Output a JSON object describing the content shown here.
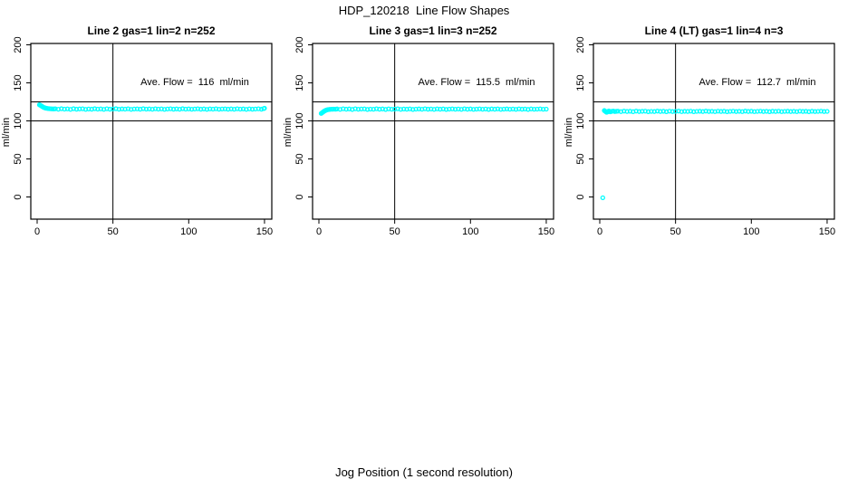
{
  "title": "HDP_120218  Line Flow Shapes",
  "xlabel": "Jog Position (1 second resolution)",
  "ylabel": "ml/min",
  "axis_color": "#000000",
  "chart_data": [
    {
      "type": "scatter",
      "title": "Line 2 gas=1 lin=2 n=252",
      "annotation": "Ave. Flow =  116  ml/min",
      "ave_flow_ml_min": 116,
      "n": 252,
      "xlim": [
        0,
        150
      ],
      "ylim": [
        0,
        200
      ],
      "xticks": [
        0,
        50,
        100,
        150
      ],
      "yticks": [
        0,
        50,
        100,
        150,
        200
      ],
      "ref_hlines": [
        100,
        125
      ],
      "ref_vlines": [
        50
      ],
      "point_color": "#00ffff",
      "points": [
        [
          1.5,
          121.2
        ],
        [
          2,
          120.7
        ],
        [
          2.5,
          120.1
        ],
        [
          3,
          119.4
        ],
        [
          3.5,
          118.7
        ],
        [
          4,
          118.1
        ],
        [
          4.5,
          117.6
        ],
        [
          5,
          117.2
        ],
        [
          5.5,
          116.9
        ],
        [
          6,
          116.6
        ],
        [
          7,
          116.3
        ],
        [
          8,
          116.1
        ],
        [
          9,
          115.9
        ],
        [
          10,
          115.8
        ],
        [
          11,
          115.7
        ],
        [
          12,
          115.9
        ],
        [
          14,
          115.3
        ],
        [
          16,
          116.0
        ],
        [
          18,
          115.5
        ],
        [
          20,
          115.8
        ],
        [
          22,
          115.2
        ],
        [
          24,
          116.0
        ],
        [
          26,
          115.4
        ],
        [
          28,
          115.7
        ],
        [
          30,
          115.9
        ],
        [
          32,
          115.2
        ],
        [
          34,
          115.6
        ],
        [
          36,
          115.4
        ],
        [
          38,
          116.0
        ],
        [
          40,
          115.5
        ],
        [
          42,
          115.8
        ],
        [
          44,
          115.2
        ],
        [
          46,
          115.9
        ],
        [
          48,
          115.4
        ],
        [
          50,
          115.6
        ],
        [
          52,
          116.0
        ],
        [
          54,
          115.3
        ],
        [
          56,
          115.7
        ],
        [
          58,
          115.5
        ],
        [
          60,
          115.9
        ],
        [
          62,
          115.2
        ],
        [
          64,
          115.6
        ],
        [
          66,
          115.8
        ],
        [
          68,
          115.4
        ],
        [
          70,
          116.0
        ],
        [
          72,
          115.5
        ],
        [
          74,
          115.7
        ],
        [
          76,
          115.3
        ],
        [
          78,
          115.9
        ],
        [
          80,
          115.5
        ],
        [
          82,
          115.8
        ],
        [
          84,
          115.2
        ],
        [
          86,
          115.6
        ],
        [
          88,
          115.9
        ],
        [
          90,
          115.4
        ],
        [
          92,
          115.7
        ],
        [
          94,
          115.3
        ],
        [
          96,
          116.0
        ],
        [
          98,
          115.5
        ],
        [
          100,
          115.8
        ],
        [
          102,
          115.3
        ],
        [
          104,
          115.6
        ],
        [
          106,
          115.9
        ],
        [
          108,
          115.4
        ],
        [
          110,
          115.7
        ],
        [
          112,
          115.2
        ],
        [
          114,
          115.8
        ],
        [
          116,
          115.5
        ],
        [
          118,
          115.9
        ],
        [
          120,
          115.3
        ],
        [
          122,
          115.6
        ],
        [
          124,
          115.8
        ],
        [
          126,
          115.4
        ],
        [
          128,
          115.7
        ],
        [
          130,
          115.3
        ],
        [
          132,
          115.9
        ],
        [
          134,
          115.5
        ],
        [
          136,
          115.7
        ],
        [
          138,
          115.2
        ],
        [
          140,
          115.8
        ],
        [
          142,
          115.4
        ],
        [
          144,
          115.6
        ],
        [
          146,
          115.9
        ],
        [
          148,
          115.4
        ],
        [
          149.5,
          116.2
        ],
        [
          150,
          116.6
        ]
      ]
    },
    {
      "type": "scatter",
      "title": "Line 3 gas=1 lin=3 n=252",
      "annotation": "Ave. Flow =  115.5  ml/min",
      "ave_flow_ml_min": 115.5,
      "n": 252,
      "xlim": [
        0,
        150
      ],
      "ylim": [
        0,
        200
      ],
      "xticks": [
        0,
        50,
        100,
        150
      ],
      "yticks": [
        0,
        50,
        100,
        150,
        200
      ],
      "ref_hlines": [
        100,
        125
      ],
      "ref_vlines": [
        50
      ],
      "point_color": "#00ffff",
      "points": [
        [
          1.5,
          109.8
        ],
        [
          2,
          110.5
        ],
        [
          2.5,
          111.3
        ],
        [
          3,
          112.1
        ],
        [
          3.5,
          112.8
        ],
        [
          4,
          113.4
        ],
        [
          4.5,
          113.9
        ],
        [
          5,
          114.3
        ],
        [
          5.5,
          114.6
        ],
        [
          6,
          114.9
        ],
        [
          7,
          115.1
        ],
        [
          8,
          115.3
        ],
        [
          9,
          115.4
        ],
        [
          10,
          115.5
        ],
        [
          11,
          115.4
        ],
        [
          12,
          115.7
        ],
        [
          14,
          115.2
        ],
        [
          16,
          115.9
        ],
        [
          18,
          115.4
        ],
        [
          20,
          115.7
        ],
        [
          22,
          115.1
        ],
        [
          24,
          115.9
        ],
        [
          26,
          115.3
        ],
        [
          28,
          115.6
        ],
        [
          30,
          115.8
        ],
        [
          32,
          115.1
        ],
        [
          34,
          115.5
        ],
        [
          36,
          115.3
        ],
        [
          38,
          115.9
        ],
        [
          40,
          115.4
        ],
        [
          42,
          115.7
        ],
        [
          44,
          115.1
        ],
        [
          46,
          115.8
        ],
        [
          48,
          115.3
        ],
        [
          50,
          115.5
        ],
        [
          52,
          115.9
        ],
        [
          54,
          115.2
        ],
        [
          56,
          115.6
        ],
        [
          58,
          115.4
        ],
        [
          60,
          115.8
        ],
        [
          62,
          115.1
        ],
        [
          64,
          115.5
        ],
        [
          66,
          115.7
        ],
        [
          68,
          115.3
        ],
        [
          70,
          115.9
        ],
        [
          72,
          115.4
        ],
        [
          74,
          115.6
        ],
        [
          76,
          115.2
        ],
        [
          78,
          115.8
        ],
        [
          80,
          115.4
        ],
        [
          82,
          115.7
        ],
        [
          84,
          115.1
        ],
        [
          86,
          115.5
        ],
        [
          88,
          115.8
        ],
        [
          90,
          115.3
        ],
        [
          92,
          115.6
        ],
        [
          94,
          115.2
        ],
        [
          96,
          115.9
        ],
        [
          98,
          115.4
        ],
        [
          100,
          115.7
        ],
        [
          102,
          115.2
        ],
        [
          104,
          115.5
        ],
        [
          106,
          115.8
        ],
        [
          108,
          115.3
        ],
        [
          110,
          115.6
        ],
        [
          112,
          115.1
        ],
        [
          114,
          115.7
        ],
        [
          116,
          115.4
        ],
        [
          118,
          115.8
        ],
        [
          120,
          115.2
        ],
        [
          122,
          115.5
        ],
        [
          124,
          115.7
        ],
        [
          126,
          115.3
        ],
        [
          128,
          115.6
        ],
        [
          130,
          115.2
        ],
        [
          132,
          115.8
        ],
        [
          134,
          115.4
        ],
        [
          136,
          115.6
        ],
        [
          138,
          115.1
        ],
        [
          140,
          115.7
        ],
        [
          142,
          115.3
        ],
        [
          144,
          115.5
        ],
        [
          146,
          115.8
        ],
        [
          148,
          115.3
        ],
        [
          150,
          115.5
        ]
      ]
    },
    {
      "type": "scatter",
      "title": "Line 4 (LT) gas=1 lin=4 n=3",
      "annotation": "Ave. Flow =  112.7  ml/min",
      "ave_flow_ml_min": 112.7,
      "n": 3,
      "xlim": [
        0,
        150
      ],
      "ylim": [
        0,
        200
      ],
      "xticks": [
        0,
        50,
        100,
        150
      ],
      "yticks": [
        0,
        50,
        100,
        150,
        200
      ],
      "ref_hlines": [
        100,
        125
      ],
      "ref_vlines": [
        50
      ],
      "point_color": "#00ffff",
      "points": [
        [
          2,
          -1
        ],
        [
          3,
          113.6
        ],
        [
          3.5,
          112.9
        ],
        [
          4,
          112.0
        ],
        [
          4.5,
          111.3
        ],
        [
          5,
          111.8
        ],
        [
          5.5,
          112.5
        ],
        [
          6,
          113.0
        ],
        [
          6.5,
          112.4
        ],
        [
          7,
          111.9
        ],
        [
          8,
          112.6
        ],
        [
          9,
          112.9
        ],
        [
          10,
          112.3
        ],
        [
          11,
          112.6
        ],
        [
          12,
          112.8
        ],
        [
          14,
          112.2
        ],
        [
          16,
          112.9
        ],
        [
          18,
          112.4
        ],
        [
          20,
          112.7
        ],
        [
          22,
          112.1
        ],
        [
          24,
          112.9
        ],
        [
          26,
          112.3
        ],
        [
          28,
          112.6
        ],
        [
          30,
          112.8
        ],
        [
          32,
          112.1
        ],
        [
          34,
          112.5
        ],
        [
          36,
          112.3
        ],
        [
          38,
          112.9
        ],
        [
          40,
          112.4
        ],
        [
          42,
          112.7
        ],
        [
          44,
          112.1
        ],
        [
          46,
          112.8
        ],
        [
          48,
          112.3
        ],
        [
          50,
          112.5
        ],
        [
          52,
          112.9
        ],
        [
          54,
          112.2
        ],
        [
          56,
          112.6
        ],
        [
          58,
          112.4
        ],
        [
          60,
          112.8
        ],
        [
          62,
          112.1
        ],
        [
          64,
          112.5
        ],
        [
          66,
          112.7
        ],
        [
          68,
          112.3
        ],
        [
          70,
          112.9
        ],
        [
          72,
          112.4
        ],
        [
          74,
          112.6
        ],
        [
          76,
          112.2
        ],
        [
          78,
          112.8
        ],
        [
          80,
          112.4
        ],
        [
          82,
          112.7
        ],
        [
          84,
          112.1
        ],
        [
          86,
          112.5
        ],
        [
          88,
          112.8
        ],
        [
          90,
          112.3
        ],
        [
          92,
          112.6
        ],
        [
          94,
          112.2
        ],
        [
          96,
          112.9
        ],
        [
          98,
          112.4
        ],
        [
          100,
          112.7
        ],
        [
          102,
          112.2
        ],
        [
          104,
          112.5
        ],
        [
          106,
          112.8
        ],
        [
          108,
          112.3
        ],
        [
          110,
          112.6
        ],
        [
          112,
          112.1
        ],
        [
          114,
          112.7
        ],
        [
          116,
          112.4
        ],
        [
          118,
          112.8
        ],
        [
          120,
          112.2
        ],
        [
          122,
          112.5
        ],
        [
          124,
          112.7
        ],
        [
          126,
          112.3
        ],
        [
          128,
          112.6
        ],
        [
          130,
          112.2
        ],
        [
          132,
          112.8
        ],
        [
          134,
          112.4
        ],
        [
          136,
          112.6
        ],
        [
          138,
          112.1
        ],
        [
          140,
          112.7
        ],
        [
          142,
          112.3
        ],
        [
          144,
          112.5
        ],
        [
          146,
          112.8
        ],
        [
          148,
          112.3
        ],
        [
          150,
          112.5
        ]
      ]
    }
  ]
}
